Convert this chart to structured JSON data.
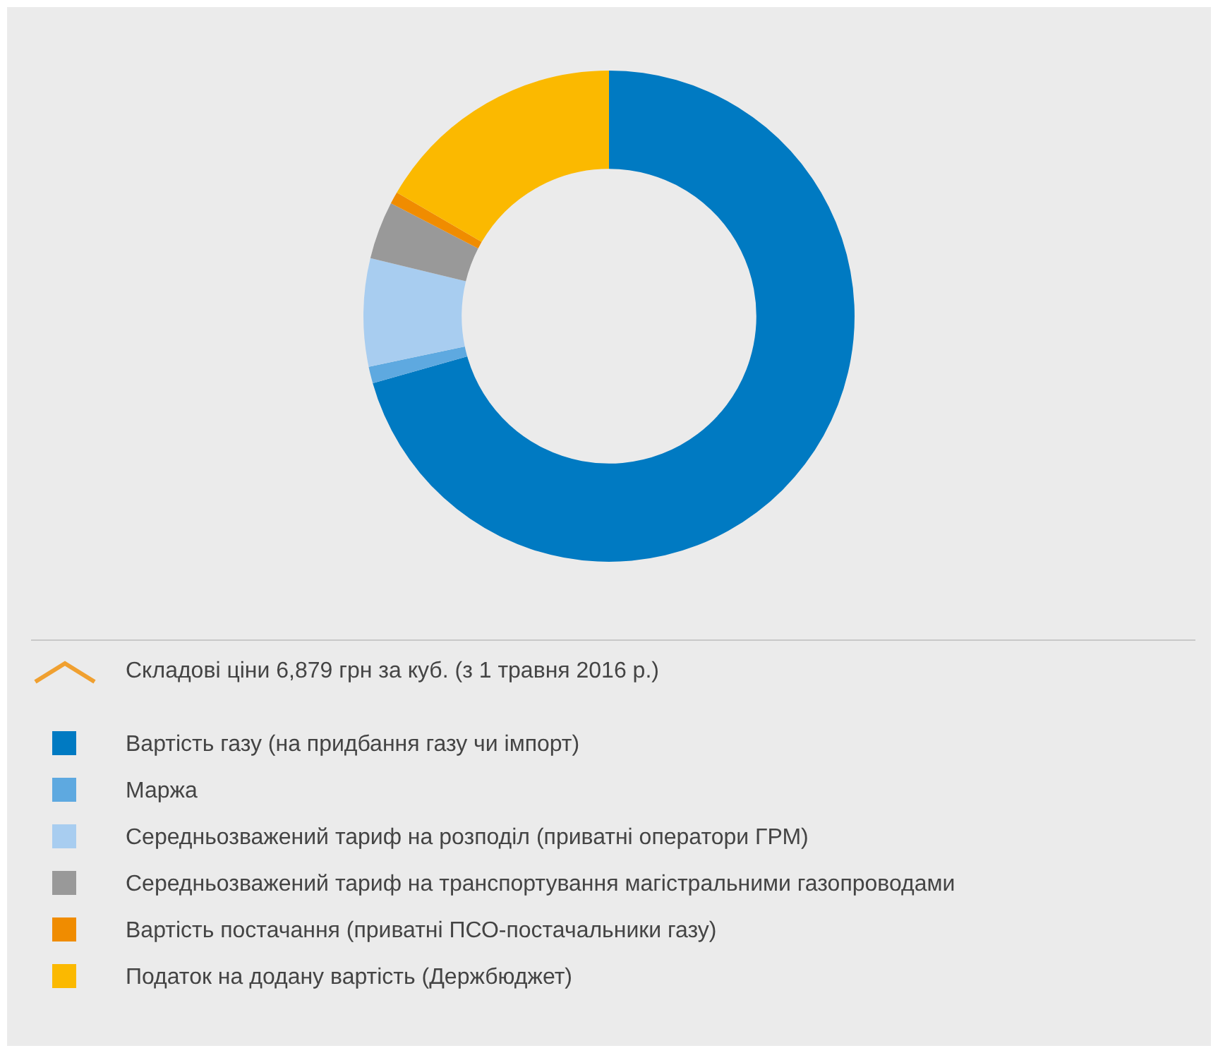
{
  "chart_data": {
    "type": "donut",
    "title": "Складові ціни 6,879 грн за куб. (з 1 травня 2016 р.)",
    "categories": [
      "Вартість газу (на придбання газу чи імпорт)",
      "Маржа",
      "Середньозважений тариф на розподіл (приватні оператори ГРМ)",
      "Середньозважений тариф на транспортування магістральними газопроводами",
      "Вартість постачання (приватні ПСО-постачальники газу)",
      "Податок на додану вартість (Держбюджет)"
    ],
    "values": [
      70.6,
      1.1,
      7.1,
      3.8,
      0.8,
      16.6
    ],
    "colors": [
      "#007ac2",
      "#5ea9e0",
      "#a8cdf0",
      "#999999",
      "#f08c00",
      "#fbb900"
    ],
    "legend": "bottom"
  }
}
